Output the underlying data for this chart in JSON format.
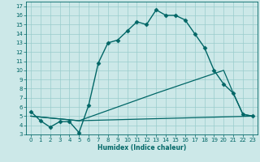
{
  "title": "",
  "xlabel": "Humidex (Indice chaleur)",
  "bg_color": "#cce8e8",
  "grid_color": "#99cccc",
  "line_color": "#006666",
  "xlim": [
    -0.5,
    23.5
  ],
  "ylim": [
    3,
    17.5
  ],
  "yticks": [
    3,
    4,
    5,
    6,
    7,
    8,
    9,
    10,
    11,
    12,
    13,
    14,
    15,
    16,
    17
  ],
  "xticks": [
    0,
    1,
    2,
    3,
    4,
    5,
    6,
    7,
    8,
    9,
    10,
    11,
    12,
    13,
    14,
    15,
    16,
    17,
    18,
    19,
    20,
    21,
    22,
    23
  ],
  "series": [
    {
      "x": [
        0,
        1,
        2,
        3,
        4,
        5,
        6,
        7,
        8,
        9,
        10,
        11,
        12,
        13,
        14,
        15,
        16,
        17,
        18,
        19,
        20,
        21,
        22,
        23
      ],
      "y": [
        5.5,
        4.5,
        3.8,
        4.4,
        4.4,
        3.2,
        6.2,
        10.8,
        13.0,
        13.3,
        14.3,
        15.3,
        15.0,
        16.6,
        16.0,
        16.0,
        15.5,
        14.0,
        12.5,
        10.0,
        8.5,
        7.5,
        5.2,
        5.0
      ],
      "marker": "D",
      "markersize": 2.5,
      "linewidth": 1.0,
      "color": "#006666"
    },
    {
      "x": [
        0,
        5,
        13,
        20,
        21,
        22,
        23
      ],
      "y": [
        5.0,
        4.5,
        7.5,
        10.0,
        7.5,
        5.2,
        5.0
      ],
      "marker": null,
      "markersize": 0,
      "linewidth": 0.9,
      "color": "#006666"
    },
    {
      "x": [
        0,
        5,
        23
      ],
      "y": [
        5.0,
        4.5,
        5.0
      ],
      "marker": null,
      "markersize": 0,
      "linewidth": 0.9,
      "color": "#006666"
    }
  ]
}
